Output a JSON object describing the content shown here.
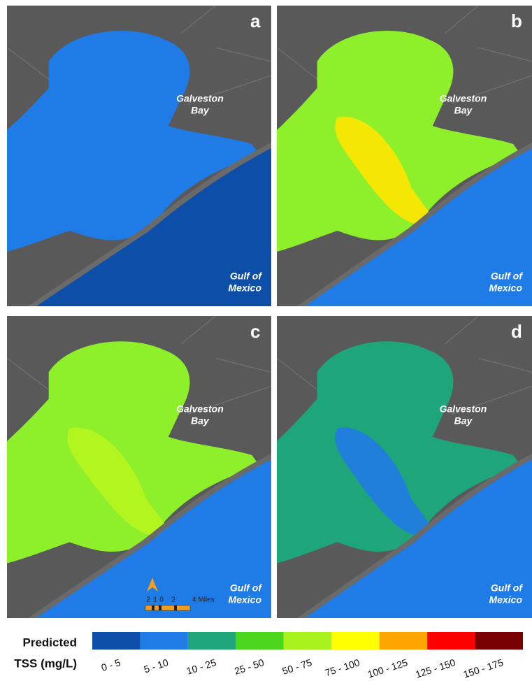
{
  "panels": [
    {
      "letter": "a",
      "bay_label": [
        "Galveston",
        "Bay"
      ],
      "gulf_label": [
        "Gulf of",
        "Mexico"
      ],
      "bay_color": "#1f7be6",
      "plume_color": "#1f7be6",
      "gulf_color": "#0d4fa8"
    },
    {
      "letter": "b",
      "bay_label": [
        "Galveston",
        "Bay"
      ],
      "gulf_label": [
        "Gulf of",
        "Mexico"
      ],
      "bay_color": "#8ef02a",
      "plume_color": "#ffe600",
      "gulf_color": "#1f7be6"
    },
    {
      "letter": "c",
      "bay_label": [
        "Galveston",
        "Bay"
      ],
      "gulf_label": [
        "Gulf of",
        "Mexico"
      ],
      "bay_color": "#8ef02a",
      "plume_color": "#b6f51e",
      "gulf_color": "#1f7be6"
    },
    {
      "letter": "d",
      "bay_label": [
        "Galveston",
        "Bay"
      ],
      "gulf_label": [
        "Gulf of",
        "Mexico"
      ],
      "bay_color": "#1fa57a",
      "plume_color": "#1f7be6",
      "gulf_color": "#1f7be6"
    }
  ],
  "scale_bar": {
    "labels": [
      "2",
      "1",
      "0",
      "2",
      "4 Miles"
    ]
  },
  "legend": {
    "title": [
      "Predicted",
      "TSS (mg/L)"
    ],
    "classes": [
      {
        "label": "0 - 5",
        "color": "#0d4fa8"
      },
      {
        "label": "5 - 10",
        "color": "#1f7be6"
      },
      {
        "label": "10 - 25",
        "color": "#1fa57a"
      },
      {
        "label": "25 - 50",
        "color": "#4cd61e"
      },
      {
        "label": "50 - 75",
        "color": "#a8f21e"
      },
      {
        "label": "75 - 100",
        "color": "#ffff00"
      },
      {
        "label": "100 - 125",
        "color": "#ffa500"
      },
      {
        "label": "125 - 150",
        "color": "#ff0000"
      },
      {
        "label": "150 - 175",
        "color": "#780000"
      }
    ]
  }
}
